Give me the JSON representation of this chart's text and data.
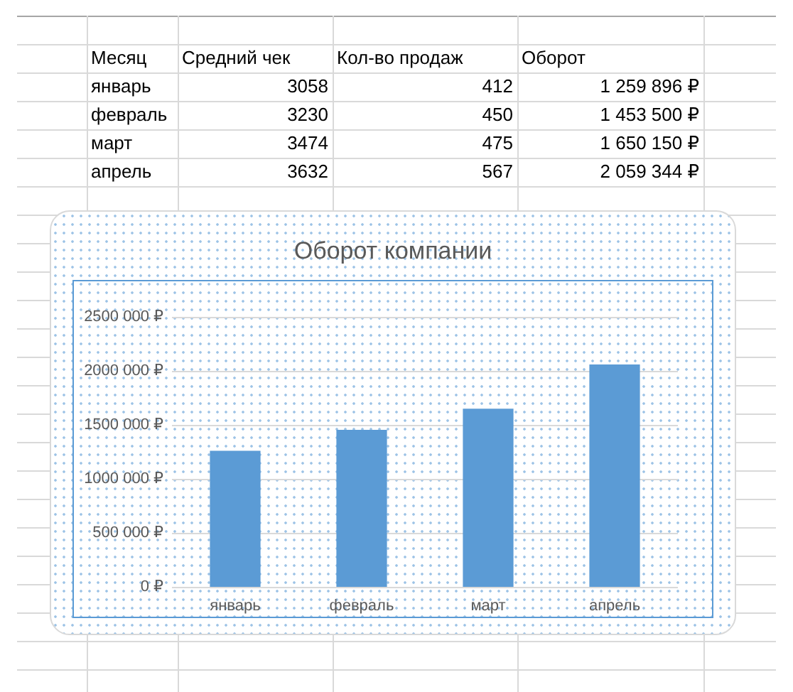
{
  "chart_data": [
    {
      "type": "other",
      "xlabel": "Месяц",
      "categories": [
        "январь",
        "февраль",
        "март",
        "апрель"
      ],
      "series": [
        {
          "name": "Средний чек",
          "values": [
            3058,
            3230,
            3474,
            3632
          ]
        },
        {
          "name": "Кол-во продаж",
          "values": [
            412,
            450,
            475,
            567
          ]
        },
        {
          "name": "Оборот",
          "values": [
            1259896,
            1453500,
            1650150,
            2059344
          ],
          "value_labels": [
            "1 259 896 ₽",
            "1 453 500 ₽",
            "1 650 150 ₽",
            "2 059 344 ₽"
          ]
        }
      ],
      "data_labels": true
    },
    {
      "type": "bar",
      "title": "Оборот компании",
      "categories": [
        "январь",
        "февраль",
        "март",
        "апрель"
      ],
      "values": [
        1259896,
        1453500,
        1650150,
        2059344
      ],
      "color": "#5b9bd5",
      "ylim": [
        0,
        2500000
      ],
      "yticks": [
        {
          "value": 0,
          "label": "0 ₽"
        },
        {
          "value": 500000,
          "label": "500 000 ₽"
        },
        {
          "value": 1000000,
          "label": "1000 000 ₽"
        },
        {
          "value": 1500000,
          "label": "1500 000 ₽"
        },
        {
          "value": 2000000,
          "label": "2000 000 ₽"
        },
        {
          "value": 2500000,
          "label": "2500 000 ₽"
        }
      ],
      "grid": "y"
    }
  ]
}
